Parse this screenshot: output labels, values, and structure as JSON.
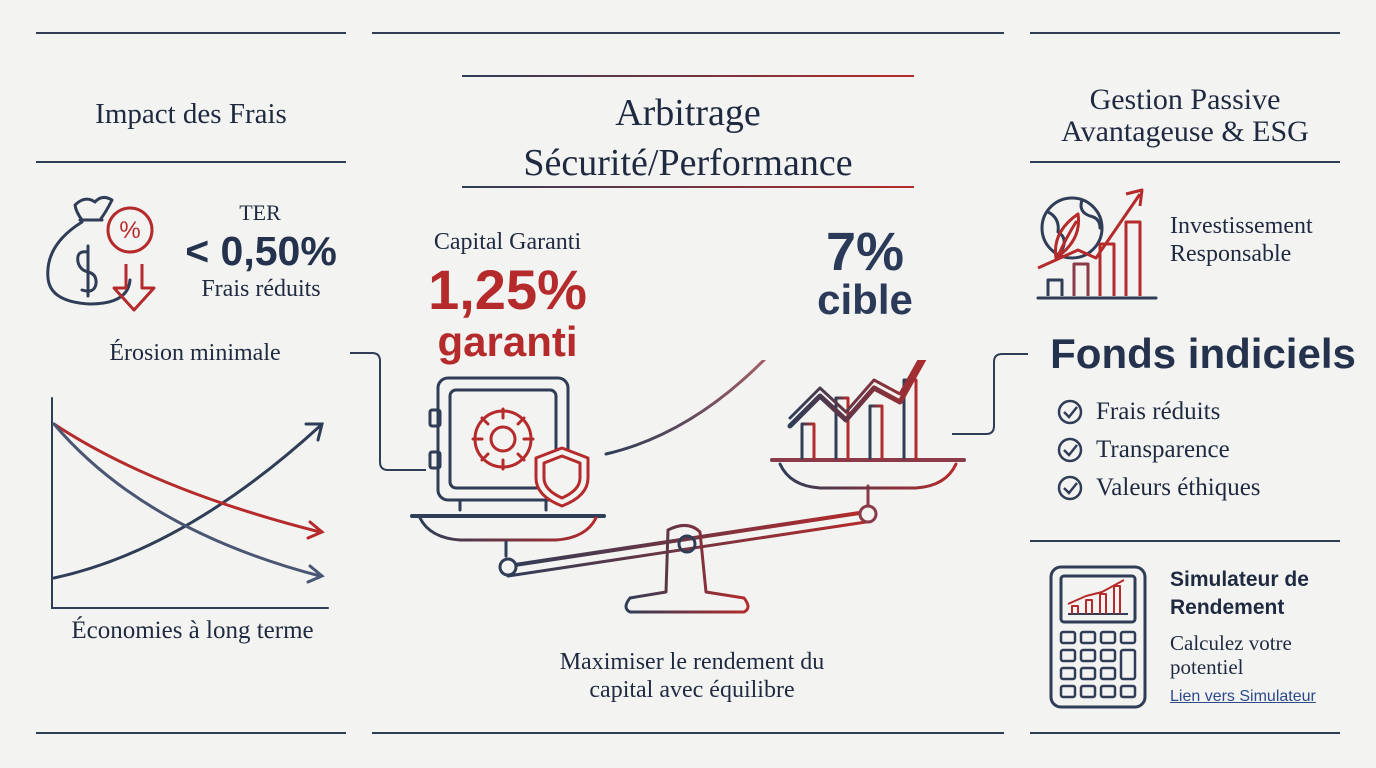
{
  "left": {
    "title": "Impact des Frais",
    "ter_label": "TER",
    "ter_value": "< 0,50%",
    "ter_sub": "Frais réduits",
    "erosion": "Érosion minimale",
    "economies": "Économies à long terme"
  },
  "center": {
    "title_line1": "Arbitrage",
    "title_line2": "Sécurité/Performance",
    "capital_label": "Capital Garanti",
    "capital_value": "1,25%",
    "capital_sub": "garanti",
    "target_value": "7%",
    "target_sub": "cible",
    "caption_line1": "Maximiser le rendement du",
    "caption_line2": "capital avec équilibre"
  },
  "right": {
    "title_line1": "Gestion Passive",
    "title_line2": "Avantageuse & ESG",
    "esg_line1": "Investissement",
    "esg_line2": "Responsable",
    "funds_title": "Fonds indiciels",
    "bullets": [
      "Frais réduits",
      "Transparence",
      "Valeurs éthiques"
    ],
    "sim_title_line1": "Simulateur de",
    "sim_title_line2": "Rendement",
    "sim_desc_line1": "Calculez votre",
    "sim_desc_line2": "potentiel",
    "sim_link": "Lien vers Simulateur"
  },
  "colors": {
    "navy": "#2f3d57",
    "red": "#b52b2b",
    "background": "#f3f3f2",
    "link": "#2c4a8a"
  },
  "icons": [
    "money-bag-icon",
    "percent-icon",
    "down-arrow-icon",
    "safe-icon",
    "shield-icon",
    "growth-chart-icon",
    "balance-scale-icon",
    "globe-leaf-icon",
    "esg-growth-chart-icon",
    "check-circle-icon",
    "calculator-icon"
  ]
}
